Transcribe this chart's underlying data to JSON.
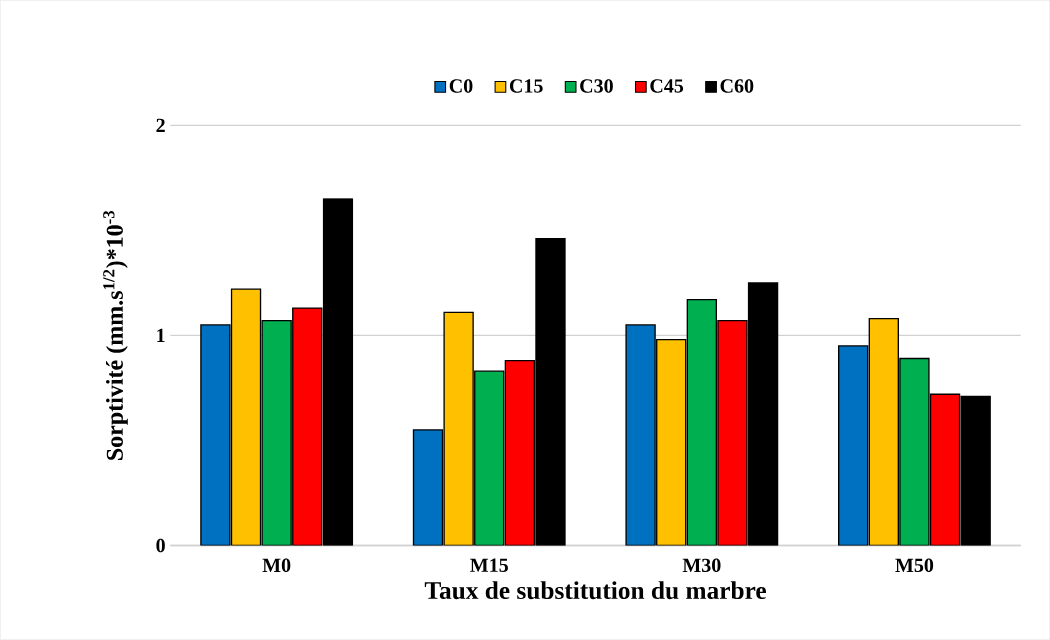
{
  "chart_data": {
    "type": "bar",
    "xlabel": "Taux de substitution du marbre",
    "ylabel": "Sorptivité (mm.s$^{1/2}$)*10$^{-3}$",
    "categories": [
      "M0",
      "M15",
      "M30",
      "M50"
    ],
    "series": [
      {
        "name": "C0",
        "color": "#0070c0",
        "values": [
          1.05,
          0.55,
          1.05,
          0.95
        ]
      },
      {
        "name": "C15",
        "color": "#ffc000",
        "values": [
          1.22,
          1.11,
          0.98,
          1.08
        ]
      },
      {
        "name": "C30",
        "color": "#00b050",
        "values": [
          1.07,
          0.83,
          1.17,
          0.89
        ]
      },
      {
        "name": "C45",
        "color": "#ff0000",
        "values": [
          1.13,
          0.88,
          1.07,
          0.72
        ]
      },
      {
        "name": "C60",
        "color": "#000000",
        "values": [
          1.65,
          1.46,
          1.25,
          0.71
        ]
      }
    ],
    "ylim": [
      0,
      2
    ],
    "yticks": [
      0,
      1,
      2
    ],
    "grid": "y",
    "legend": "top"
  }
}
